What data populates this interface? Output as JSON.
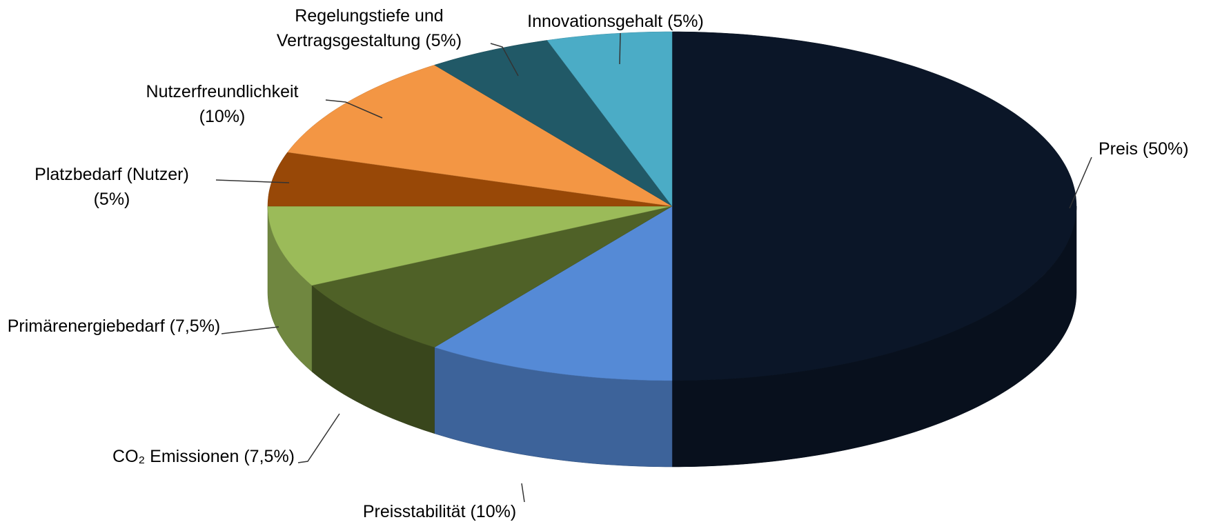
{
  "chart_data": {
    "type": "pie3d",
    "categories": [
      "Preis",
      "Preisstabilität",
      "CO₂ Emissionen",
      "Primärenergiebedarf",
      "Platzbedarf (Nutzer)",
      "Nutzerfreundlichkeit",
      "Regelungstiefe und Vertragsgestaltung",
      "Innovationsgehalt"
    ],
    "values": [
      50,
      10,
      7.5,
      7.5,
      5,
      10,
      5,
      5
    ],
    "value_labels": [
      "(50%)",
      "(10%)",
      "(7,5%)",
      "(7,5%)",
      "(5%)",
      "(10%)",
      "(5%)",
      "(5%)"
    ],
    "colors": [
      "#0b1628",
      "#558ad6",
      "#4f6127",
      "#9bbb59",
      "#984807",
      "#f39644",
      "#215967",
      "#4bacc6"
    ]
  }
}
